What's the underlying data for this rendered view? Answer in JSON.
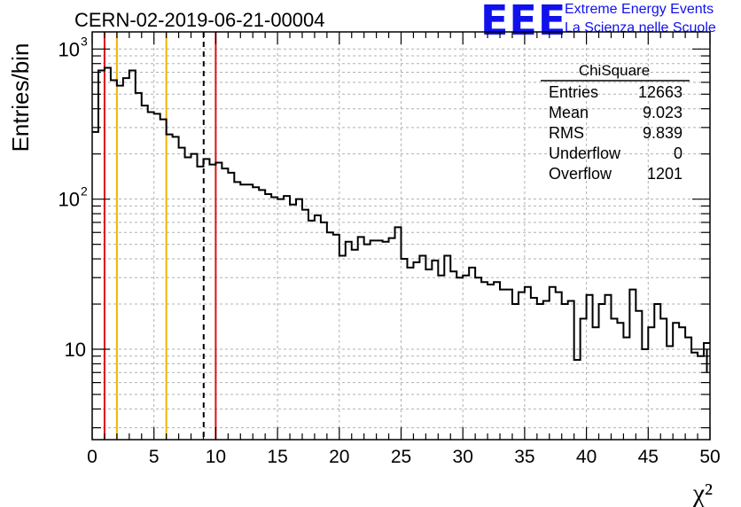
{
  "title": "CERN-02-2019-06-21-00004",
  "logo": {
    "mark": "EEE",
    "line1": "Extreme Energy Events",
    "line2": "La Scienza nelle Scuole"
  },
  "colors": {
    "histogram": "#000000",
    "red_line": "#dd1111",
    "yellow_line": "#f0b400",
    "grid": "#b0b0b0"
  },
  "chart_data": {
    "type": "histogram",
    "title": "CERN-02-2019-06-21-00004",
    "xlabel": "χ²",
    "ylabel": "Entries/bin",
    "xlim": [
      0,
      50
    ],
    "ylim": [
      2.5,
      1300
    ],
    "yscale": "log",
    "grid": true,
    "bin_width": 0.5,
    "x_ticks": [
      "0",
      "5",
      "10",
      "15",
      "20",
      "25",
      "30",
      "35",
      "40",
      "45",
      "50"
    ],
    "y_ticks": [
      {
        "value": 10,
        "label": "10"
      },
      {
        "value": 100,
        "label": "10",
        "exp": "2"
      },
      {
        "value": 1000,
        "label": "10",
        "exp": "3"
      }
    ],
    "values": [
      280,
      720,
      750,
      620,
      570,
      640,
      720,
      510,
      420,
      380,
      370,
      340,
      270,
      260,
      220,
      190,
      200,
      165,
      185,
      170,
      175,
      160,
      150,
      130,
      125,
      125,
      120,
      115,
      108,
      103,
      100,
      105,
      92,
      100,
      85,
      72,
      78,
      70,
      60,
      58,
      42,
      52,
      46,
      56,
      50,
      53,
      53,
      52,
      55,
      65,
      40,
      35,
      38,
      42,
      34,
      39,
      31,
      42,
      33,
      30,
      31,
      35,
      30,
      28,
      27,
      28,
      25,
      25,
      20,
      24,
      26,
      22,
      20,
      21,
      26,
      24,
      20,
      21,
      8.5,
      16,
      23,
      14,
      20,
      23,
      16,
      15,
      12,
      25,
      18,
      10,
      14,
      20,
      16,
      10.5,
      15,
      14,
      12,
      9.5,
      9,
      11
    ],
    "last_bin_error": [
      7,
      10
    ],
    "legend": {
      "name": "ChiSquare",
      "placement": "top-right",
      "rows": [
        {
          "label": "Entries",
          "value": "12663"
        },
        {
          "label": "Mean",
          "value": "9.023"
        },
        {
          "label": "RMS",
          "value": "9.839"
        },
        {
          "label": "Underflow",
          "value": "0"
        },
        {
          "label": "Overflow",
          "value": "1201"
        }
      ]
    },
    "vertical_lines": [
      {
        "x": 1,
        "color": "red",
        "style": "solid"
      },
      {
        "x": 2,
        "color": "yellow",
        "style": "solid"
      },
      {
        "x": 6,
        "color": "yellow",
        "style": "solid"
      },
      {
        "x": 9.023,
        "color": "black",
        "style": "dashed"
      },
      {
        "x": 10,
        "color": "red",
        "style": "solid"
      }
    ]
  }
}
